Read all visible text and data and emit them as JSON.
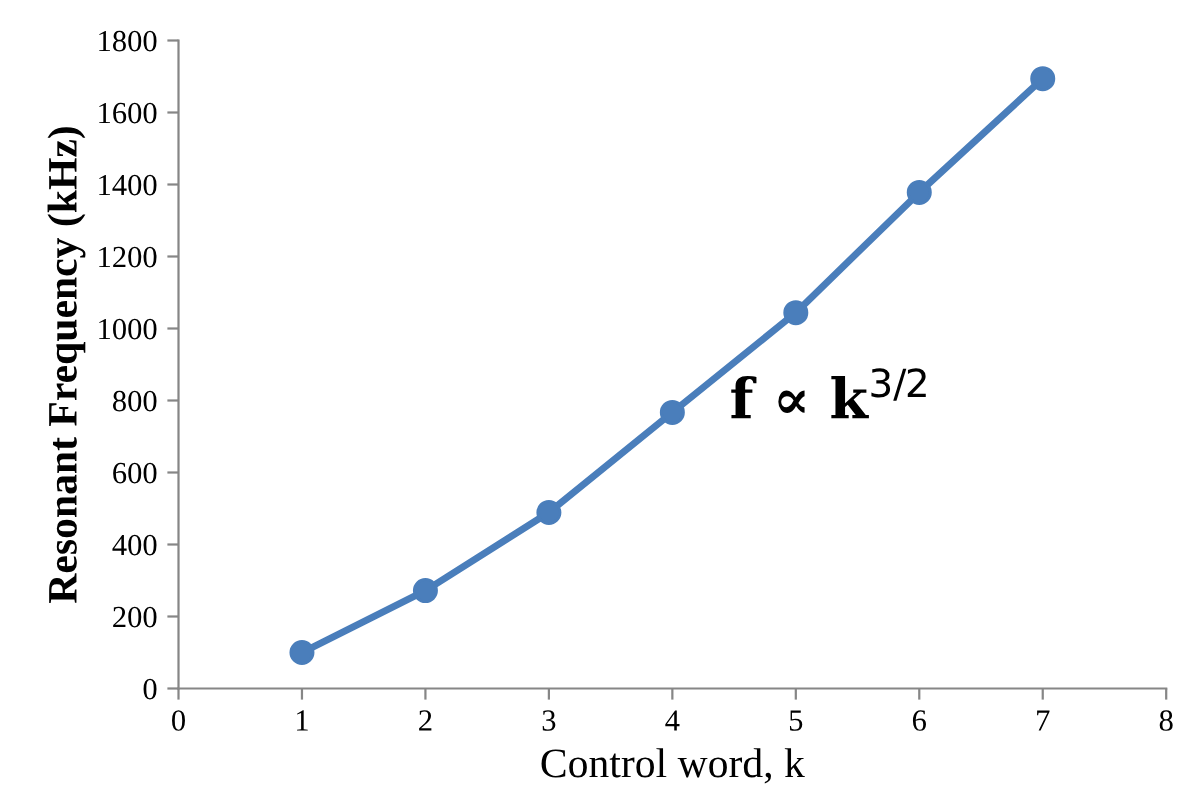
{
  "chart_data": {
    "type": "line",
    "xlabel": "Control word, k",
    "ylabel": "Resonant Frequency (kHz)",
    "x": [
      1,
      2,
      3,
      4,
      5,
      6,
      7
    ],
    "series": [
      {
        "color": "#4a7ebb",
        "values": [
          100,
          272,
          489,
          767,
          1044,
          1378,
          1694
        ]
      }
    ],
    "xlim": [
      0,
      8
    ],
    "xticks": [
      0,
      1,
      2,
      3,
      4,
      5,
      6,
      7,
      8
    ],
    "ylim": [
      0,
      1800
    ],
    "yticks": [
      0,
      200,
      400,
      600,
      800,
      1000,
      1200,
      1400,
      1600,
      1800
    ],
    "grid": false,
    "legend": false,
    "marker": "circle",
    "line_style": "solid",
    "annotations": [
      "f ∝ k$^{3/2}$"
    ]
  }
}
